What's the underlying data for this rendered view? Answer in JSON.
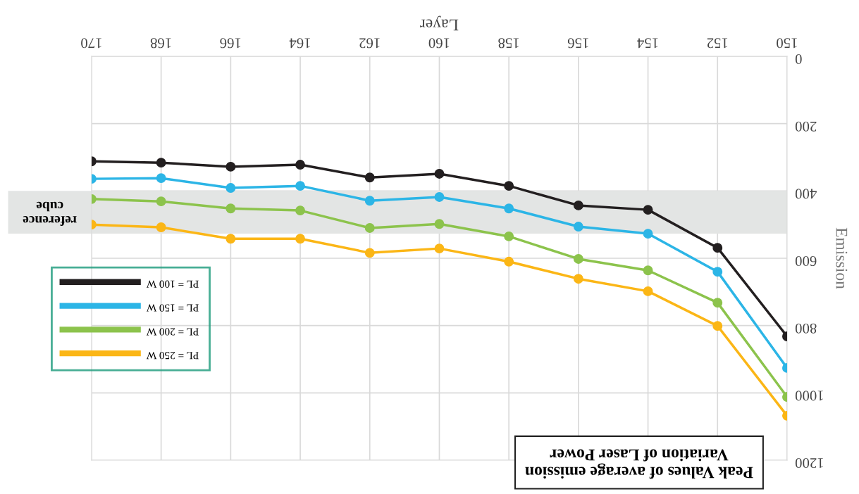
{
  "chart_data": {
    "type": "line",
    "title": "Peak Values of average emission\nVariation of Laser Power",
    "xlabel": "Layer",
    "ylabel": "Emission",
    "x": [
      150,
      152,
      154,
      156,
      158,
      160,
      162,
      164,
      166,
      168,
      170
    ],
    "series": [
      {
        "name": "PL = 100 W",
        "color": "#231f20",
        "values": [
          832,
          569,
          456,
          443,
          385,
          349,
          360,
          322,
          328,
          316,
          312
        ]
      },
      {
        "name": "PL = 150 W",
        "color": "#2cb5e6",
        "values": [
          926,
          640,
          527,
          506,
          452,
          418,
          429,
          385,
          391,
          362,
          364
        ]
      },
      {
        "name": "PL = 200 W",
        "color": "#8cc34c",
        "values": [
          1012,
          732,
          636,
          602,
          535,
          498,
          510,
          458,
          452,
          431,
          424
        ]
      },
      {
        "name": "PL = 250 W",
        "color": "#fbb616",
        "values": [
          1068,
          801,
          698,
          661,
          610,
          571,
          584,
          542,
          542,
          508,
          500
        ]
      }
    ],
    "xlim": [
      170,
      150
    ],
    "ylim": [
      1200,
      0
    ],
    "xticks": [
      150,
      152,
      154,
      156,
      158,
      160,
      162,
      164,
      166,
      168,
      170
    ],
    "yticks": [
      0,
      200,
      400,
      600,
      800,
      1000,
      1200
    ],
    "bands": [
      {
        "axis": "y",
        "from": 400,
        "to": 527,
        "label": "reference\ncube",
        "color": "#e3e5e4"
      }
    ],
    "grid": true,
    "legend": "left",
    "marker": "circle",
    "line_style": "solid"
  }
}
